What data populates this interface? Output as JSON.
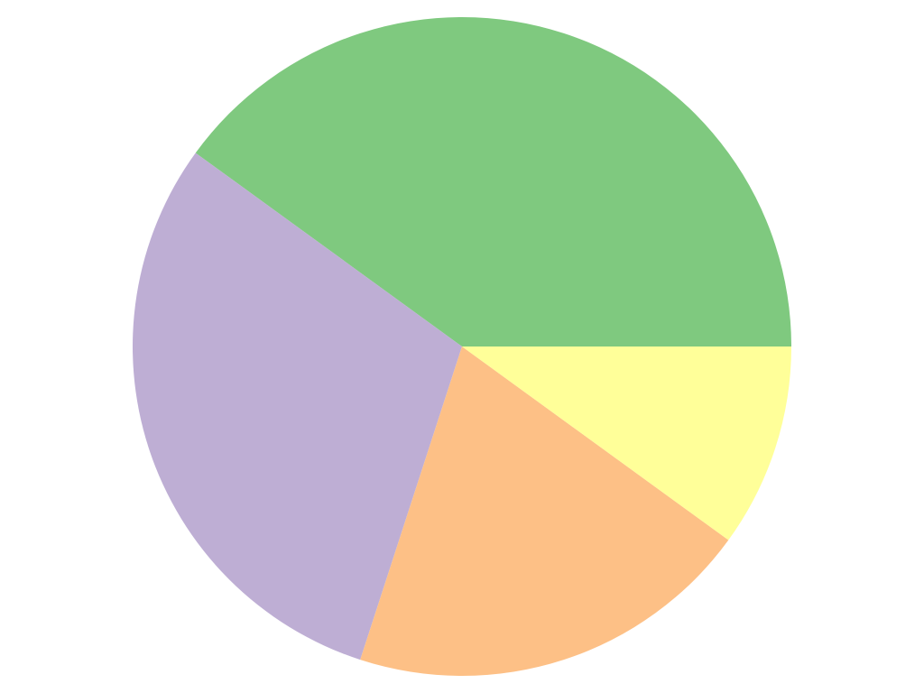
{
  "chart_data": {
    "type": "pie",
    "values": [
      40,
      30,
      20,
      10
    ],
    "colors": [
      "#7fc97f",
      "#beaed4",
      "#fdc086",
      "#ffff99"
    ],
    "start_angle_deg": 0,
    "direction": "counterclockwise",
    "title": "",
    "legend": "none"
  }
}
